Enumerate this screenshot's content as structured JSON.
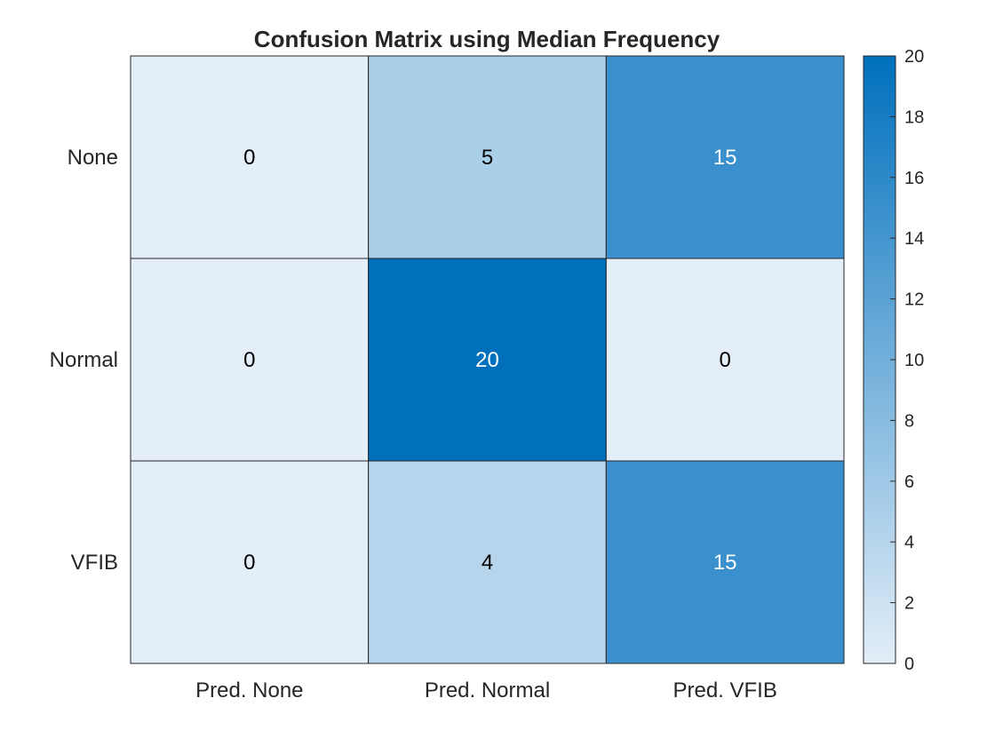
{
  "chart_data": {
    "type": "heatmap",
    "title": "Confusion Matrix using Median Frequency",
    "x_categories": [
      "Pred. None",
      "Pred. Normal",
      "Pred. VFIB"
    ],
    "y_categories": [
      "None",
      "Normal",
      "VFIB"
    ],
    "values": [
      [
        0,
        5,
        15
      ],
      [
        0,
        20,
        0
      ],
      [
        0,
        4,
        15
      ]
    ],
    "colorbar": {
      "range": [
        0,
        20
      ],
      "ticks": [
        0,
        2,
        4,
        6,
        8,
        10,
        12,
        14,
        16,
        18,
        20
      ],
      "color_low": "#e3eef8",
      "color_high": "#0070bd"
    },
    "text_color_dark": "#000000",
    "text_color_light": "#ffffff"
  }
}
